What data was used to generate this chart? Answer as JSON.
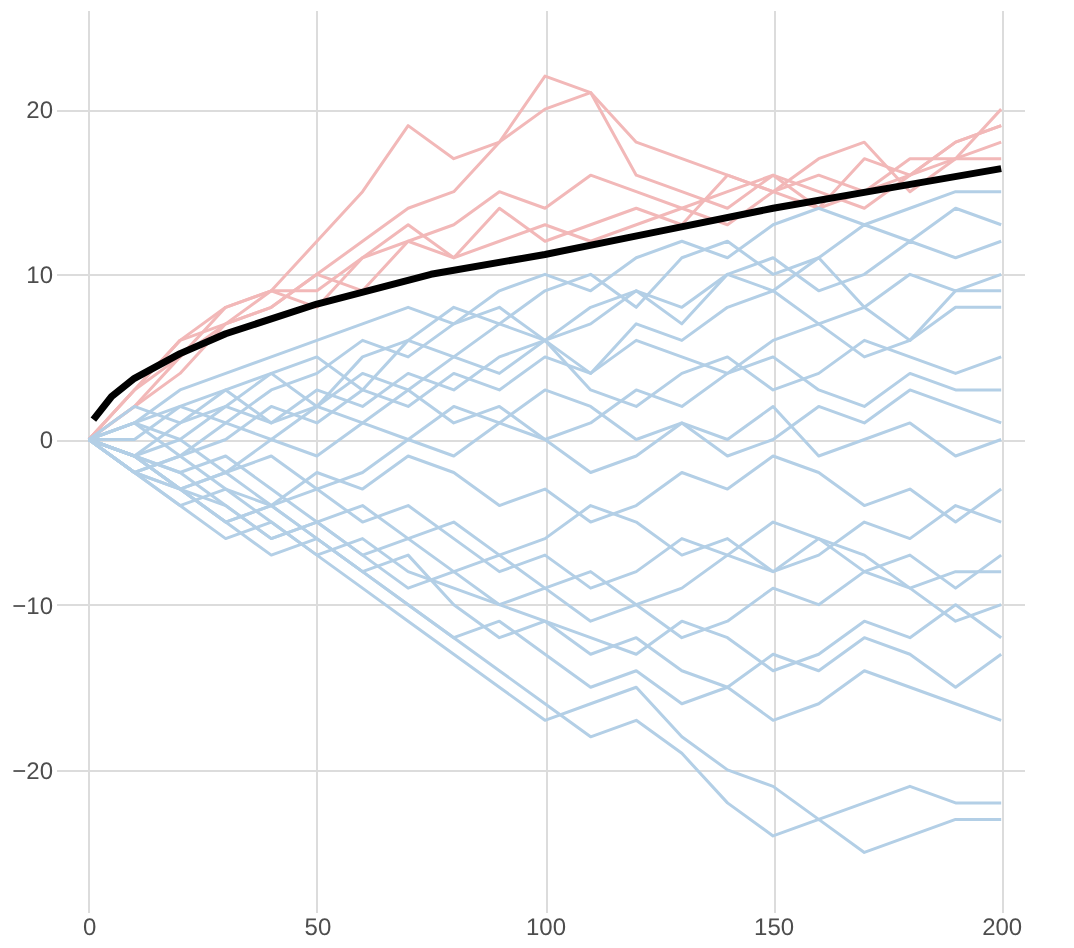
{
  "chart_data": {
    "type": "line",
    "xlim": [
      -5,
      205
    ],
    "ylim": [
      -28,
      26
    ],
    "xticks": [
      0,
      50,
      100,
      150,
      200
    ],
    "yticks": [
      -20,
      -10,
      0,
      10,
      20
    ],
    "grid": true,
    "line_style": "solid",
    "marker": "none",
    "x": [
      0,
      10,
      20,
      30,
      40,
      50,
      60,
      70,
      80,
      90,
      100,
      110,
      120,
      130,
      140,
      150,
      160,
      170,
      180,
      190,
      200
    ],
    "series": [
      {
        "color": "#f2b8b8",
        "values": [
          0,
          3,
          6,
          8,
          9,
          12,
          15,
          19,
          17,
          18,
          20,
          21,
          16,
          15,
          14,
          16,
          14,
          17,
          16,
          18,
          19
        ]
      },
      {
        "color": "#f2b8b8",
        "values": [
          0,
          2,
          5,
          7,
          8,
          10,
          12,
          14,
          15,
          18,
          22,
          21,
          18,
          17,
          16,
          15,
          17,
          18,
          15,
          17,
          20
        ]
      },
      {
        "color": "#f2b8b8",
        "values": [
          0,
          3,
          5,
          8,
          9,
          9,
          11,
          13,
          11,
          14,
          12,
          13,
          14,
          13,
          16,
          15,
          14,
          15,
          16,
          17,
          18
        ]
      },
      {
        "color": "#f2b8b8",
        "values": [
          0,
          2,
          4,
          7,
          8,
          10,
          9,
          12,
          13,
          15,
          14,
          16,
          15,
          14,
          15,
          16,
          15,
          14,
          16,
          18,
          19
        ]
      },
      {
        "color": "#f2b8b8",
        "values": [
          0,
          3,
          6,
          7,
          9,
          8,
          11,
          12,
          11,
          12,
          13,
          12,
          13,
          14,
          13,
          15,
          16,
          15,
          17,
          17,
          17
        ]
      },
      {
        "color": "#b3cfe6",
        "values": [
          0,
          1,
          3,
          4,
          5,
          6,
          7,
          8,
          7,
          9,
          10,
          9,
          11,
          12,
          11,
          13,
          14,
          13,
          14,
          15,
          15
        ]
      },
      {
        "color": "#b3cfe6",
        "values": [
          0,
          2,
          1,
          3,
          4,
          2,
          5,
          6,
          8,
          7,
          9,
          10,
          8,
          11,
          12,
          10,
          11,
          13,
          12,
          14,
          13
        ]
      },
      {
        "color": "#b3cfe6",
        "values": [
          0,
          -1,
          1,
          2,
          4,
          5,
          3,
          6,
          5,
          7,
          6,
          8,
          9,
          7,
          10,
          11,
          9,
          10,
          12,
          11,
          12
        ]
      },
      {
        "color": "#b3cfe6",
        "values": [
          0,
          1,
          2,
          1,
          3,
          4,
          6,
          5,
          7,
          8,
          6,
          7,
          9,
          8,
          10,
          9,
          11,
          8,
          10,
          9,
          10
        ]
      },
      {
        "color": "#b3cfe6",
        "values": [
          0,
          -1,
          0,
          2,
          1,
          3,
          2,
          4,
          3,
          5,
          6,
          4,
          7,
          6,
          8,
          9,
          7,
          8,
          6,
          9,
          9
        ]
      },
      {
        "color": "#b3cfe6",
        "values": [
          0,
          1,
          -1,
          0,
          2,
          1,
          3,
          2,
          4,
          3,
          5,
          4,
          6,
          5,
          4,
          6,
          7,
          5,
          6,
          8,
          8
        ]
      },
      {
        "color": "#b3cfe6",
        "values": [
          0,
          -2,
          -1,
          1,
          0,
          2,
          1,
          3,
          5,
          4,
          6,
          3,
          2,
          4,
          5,
          3,
          4,
          6,
          5,
          4,
          5
        ]
      },
      {
        "color": "#b3cfe6",
        "values": [
          0,
          0,
          2,
          3,
          1,
          2,
          4,
          3,
          1,
          2,
          0,
          1,
          3,
          2,
          4,
          5,
          3,
          2,
          4,
          3,
          3
        ]
      },
      {
        "color": "#b3cfe6",
        "values": [
          0,
          -1,
          -3,
          -2,
          0,
          -1,
          1,
          0,
          2,
          1,
          3,
          2,
          0,
          1,
          -1,
          0,
          2,
          1,
          3,
          2,
          1
        ]
      },
      {
        "color": "#b3cfe6",
        "values": [
          0,
          1,
          0,
          -2,
          -1,
          -3,
          -2,
          0,
          -1,
          1,
          0,
          -2,
          -1,
          1,
          0,
          2,
          -1,
          0,
          1,
          -1,
          0
        ]
      },
      {
        "color": "#b3cfe6",
        "values": [
          0,
          -2,
          -3,
          -5,
          -4,
          -2,
          -3,
          -1,
          -2,
          -4,
          -3,
          -5,
          -4,
          -2,
          -3,
          -1,
          -2,
          -4,
          -3,
          -5,
          -3
        ]
      },
      {
        "color": "#b3cfe6",
        "values": [
          0,
          -1,
          -2,
          -1,
          -3,
          -5,
          -4,
          -6,
          -5,
          -7,
          -6,
          -4,
          -5,
          -7,
          -6,
          -8,
          -7,
          -5,
          -6,
          -4,
          -5
        ]
      },
      {
        "color": "#b3cfe6",
        "values": [
          0,
          -2,
          -1,
          -3,
          -4,
          -3,
          -5,
          -4,
          -6,
          -8,
          -7,
          -9,
          -8,
          -6,
          -7,
          -5,
          -6,
          -8,
          -7,
          -9,
          -7
        ]
      },
      {
        "color": "#b3cfe6",
        "values": [
          0,
          -1,
          -3,
          -4,
          -6,
          -5,
          -7,
          -6,
          -8,
          -7,
          -9,
          -8,
          -10,
          -9,
          -7,
          -8,
          -6,
          -7,
          -9,
          -8,
          -8
        ]
      },
      {
        "color": "#b3cfe6",
        "values": [
          0,
          -2,
          -4,
          -3,
          -5,
          -7,
          -6,
          -8,
          -9,
          -10,
          -9,
          -11,
          -10,
          -12,
          -11,
          -9,
          -10,
          -8,
          -9,
          -11,
          -10
        ]
      },
      {
        "color": "#b3cfe6",
        "values": [
          0,
          -1,
          -2,
          -4,
          -6,
          -5,
          -7,
          -9,
          -8,
          -10,
          -11,
          -12,
          -13,
          -11,
          -12,
          -14,
          -13,
          -11,
          -12,
          -10,
          -12
        ]
      },
      {
        "color": "#b3cfe6",
        "values": [
          0,
          -2,
          -3,
          -5,
          -4,
          -6,
          -8,
          -7,
          -10,
          -12,
          -11,
          -13,
          -12,
          -14,
          -15,
          -13,
          -14,
          -12,
          -13,
          -15,
          -13
        ]
      },
      {
        "color": "#b3cfe6",
        "values": [
          0,
          -1,
          -3,
          -5,
          -7,
          -6,
          -8,
          -10,
          -12,
          -11,
          -13,
          -15,
          -14,
          -16,
          -15,
          -17,
          -16,
          -14,
          -15,
          -16,
          -17
        ]
      },
      {
        "color": "#b3cfe6",
        "values": [
          0,
          -2,
          -4,
          -6,
          -5,
          -7,
          -9,
          -11,
          -13,
          -15,
          -17,
          -16,
          -15,
          -18,
          -20,
          -21,
          -23,
          -22,
          -21,
          -22,
          -22
        ]
      },
      {
        "color": "#b3cfe6",
        "values": [
          0,
          -1,
          -3,
          -2,
          -4,
          -6,
          -8,
          -10,
          -12,
          -14,
          -16,
          -18,
          -17,
          -19,
          -22,
          -24,
          -23,
          -25,
          -24,
          -23,
          -23
        ]
      },
      {
        "color": "#000000",
        "x": [
          1,
          5,
          10,
          20,
          30,
          50,
          75,
          100,
          125,
          150,
          175,
          200
        ],
        "values": [
          1.2,
          2.6,
          3.7,
          5.2,
          6.4,
          8.2,
          10,
          11.2,
          12.6,
          14,
          15.2,
          16.4
        ]
      }
    ]
  }
}
